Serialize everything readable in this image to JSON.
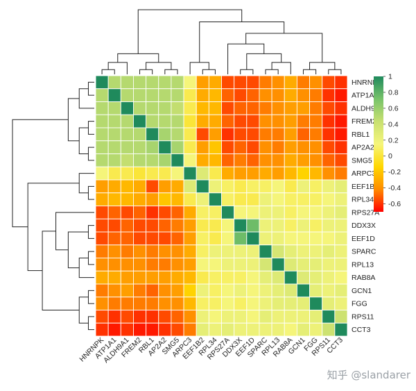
{
  "chart_data": {
    "type": "heatmap",
    "title": "",
    "genes": [
      "HNRNPK",
      "ATP1A1",
      "ALDH9A1",
      "FREM2",
      "RBL1",
      "AP2A2",
      "SMG5",
      "ARPC3",
      "EEF1B2",
      "RPL34",
      "RPS27A",
      "DDX3X",
      "EEF1D",
      "SPARC",
      "RPL13",
      "RAB8A",
      "GCN1",
      "FGG",
      "RPS11",
      "CCT3"
    ],
    "values": [
      [
        1,
        0.5,
        0.5,
        0.5,
        0.5,
        0.5,
        0.5,
        0.15,
        -0.35,
        -0.3,
        -0.55,
        -0.55,
        -0.55,
        -0.45,
        -0.4,
        -0.3,
        -0.45,
        -0.4,
        -0.55,
        -0.6
      ],
      [
        0.5,
        1,
        0.5,
        0.5,
        0.5,
        0.5,
        0.5,
        0.05,
        -0.3,
        -0.25,
        -0.5,
        -0.55,
        -0.5,
        -0.4,
        -0.4,
        -0.3,
        -0.4,
        -0.45,
        -0.6,
        -0.65
      ],
      [
        0.5,
        0.5,
        1,
        0.5,
        0.5,
        0.5,
        0.45,
        0.05,
        -0.25,
        -0.25,
        -0.55,
        -0.5,
        -0.5,
        -0.45,
        -0.4,
        -0.35,
        -0.35,
        -0.45,
        -0.55,
        -0.6
      ],
      [
        0.5,
        0.5,
        0.5,
        1,
        0.5,
        0.5,
        0.5,
        0.0,
        -0.3,
        -0.3,
        -0.5,
        -0.55,
        -0.55,
        -0.4,
        -0.4,
        -0.35,
        -0.45,
        -0.45,
        -0.6,
        -0.65
      ],
      [
        0.5,
        0.5,
        0.5,
        0.5,
        1,
        0.55,
        0.5,
        0.05,
        -0.55,
        -0.35,
        -0.6,
        -0.55,
        -0.55,
        -0.45,
        -0.45,
        -0.35,
        -0.5,
        -0.45,
        -0.6,
        -0.65
      ],
      [
        0.5,
        0.5,
        0.5,
        0.5,
        0.55,
        1,
        0.55,
        0.05,
        -0.35,
        -0.2,
        -0.55,
        -0.5,
        -0.55,
        -0.4,
        -0.45,
        -0.35,
        -0.4,
        -0.4,
        -0.55,
        -0.6
      ],
      [
        0.5,
        0.5,
        0.45,
        0.5,
        0.5,
        0.55,
        1,
        0.15,
        -0.3,
        -0.25,
        -0.5,
        -0.45,
        -0.5,
        -0.4,
        -0.4,
        -0.3,
        -0.35,
        -0.4,
        -0.5,
        -0.55
      ],
      [
        0.15,
        0.05,
        0.05,
        0.0,
        0.05,
        0.05,
        0.15,
        1,
        0.3,
        0.05,
        -0.3,
        -0.35,
        -0.35,
        -0.3,
        -0.35,
        -0.25,
        -0.15,
        -0.25,
        -0.4,
        -0.45
      ],
      [
        -0.35,
        -0.3,
        -0.25,
        -0.3,
        -0.55,
        -0.35,
        -0.3,
        0.3,
        1,
        0.2,
        0.1,
        0.05,
        0.1,
        0.1,
        0.15,
        0.05,
        0.2,
        0.1,
        0.2,
        0.25
      ],
      [
        -0.3,
        -0.25,
        -0.25,
        -0.3,
        -0.35,
        -0.2,
        -0.25,
        0.05,
        0.2,
        1,
        0.1,
        0.05,
        0.05,
        0.2,
        0.15,
        0.1,
        0.1,
        0.1,
        0.15,
        0.2
      ],
      [
        -0.55,
        -0.5,
        -0.55,
        -0.5,
        -0.6,
        -0.55,
        -0.5,
        -0.3,
        0.1,
        0.1,
        1,
        0.15,
        0.15,
        0.2,
        0.2,
        0.1,
        0.15,
        0.15,
        0.2,
        0.25
      ],
      [
        -0.55,
        -0.55,
        -0.5,
        -0.55,
        -0.55,
        -0.5,
        -0.45,
        -0.35,
        0.05,
        0.05,
        0.15,
        1,
        0.75,
        0.2,
        0.2,
        0.1,
        0.2,
        0.1,
        0.2,
        0.2
      ],
      [
        -0.55,
        -0.5,
        -0.5,
        -0.55,
        -0.55,
        -0.55,
        -0.5,
        -0.35,
        0.1,
        0.05,
        0.15,
        0.75,
        1,
        0.2,
        0.2,
        0.15,
        0.15,
        0.15,
        0.15,
        0.2
      ],
      [
        -0.45,
        -0.4,
        -0.45,
        -0.4,
        -0.45,
        -0.4,
        -0.4,
        -0.3,
        0.1,
        0.2,
        0.2,
        0.2,
        0.2,
        1,
        0.35,
        0.25,
        0.2,
        0.2,
        0.25,
        0.2
      ],
      [
        -0.4,
        -0.4,
        -0.4,
        -0.4,
        -0.45,
        -0.45,
        -0.4,
        -0.35,
        0.15,
        0.15,
        0.2,
        0.2,
        0.2,
        0.35,
        1,
        0.3,
        0.25,
        0.25,
        0.2,
        0.2
      ],
      [
        -0.3,
        -0.3,
        -0.35,
        -0.35,
        -0.35,
        -0.35,
        -0.3,
        -0.25,
        0.05,
        0.1,
        0.1,
        0.1,
        0.15,
        0.25,
        0.3,
        1,
        0.3,
        0.25,
        0.2,
        0.15
      ],
      [
        -0.45,
        -0.4,
        -0.35,
        -0.45,
        -0.5,
        -0.4,
        -0.35,
        -0.15,
        0.2,
        0.1,
        0.15,
        0.2,
        0.15,
        0.2,
        0.25,
        0.3,
        1,
        0.25,
        0.2,
        0.25
      ],
      [
        -0.4,
        -0.45,
        -0.45,
        -0.45,
        -0.45,
        -0.4,
        -0.4,
        -0.25,
        0.1,
        0.1,
        0.15,
        0.1,
        0.15,
        0.2,
        0.25,
        0.25,
        0.25,
        1,
        0.25,
        0.2
      ],
      [
        -0.55,
        -0.6,
        -0.55,
        -0.6,
        -0.6,
        -0.55,
        -0.5,
        -0.4,
        0.2,
        0.15,
        0.2,
        0.2,
        0.15,
        0.25,
        0.2,
        0.2,
        0.2,
        0.25,
        1,
        0.4
      ],
      [
        -0.6,
        -0.65,
        -0.6,
        -0.65,
        -0.65,
        -0.6,
        -0.55,
        -0.45,
        0.25,
        0.2,
        0.25,
        0.2,
        0.2,
        0.2,
        0.2,
        0.15,
        0.25,
        0.2,
        0.4,
        1
      ]
    ],
    "color_range": [
      -0.7,
      1
    ],
    "colorscale": [
      "#FF0000",
      "#FF8C00",
      "#FFD700",
      "#F5F57A",
      "#C8E070",
      "#78C36A",
      "#1F8A5C"
    ],
    "colorbar_ticks": [
      1,
      0.8,
      0.6,
      0.4,
      0.2,
      0,
      -0.2,
      -0.4,
      -0.6
    ],
    "colorbar_tick_labels": [
      "1",
      "0.8",
      "0.6",
      "0.4",
      "0.2",
      "0",
      "-0.2",
      "-0.4",
      "-0.6"
    ],
    "dendrogram": "hierarchical clustering on rows and columns",
    "watermark": "知乎 @slandarer"
  }
}
